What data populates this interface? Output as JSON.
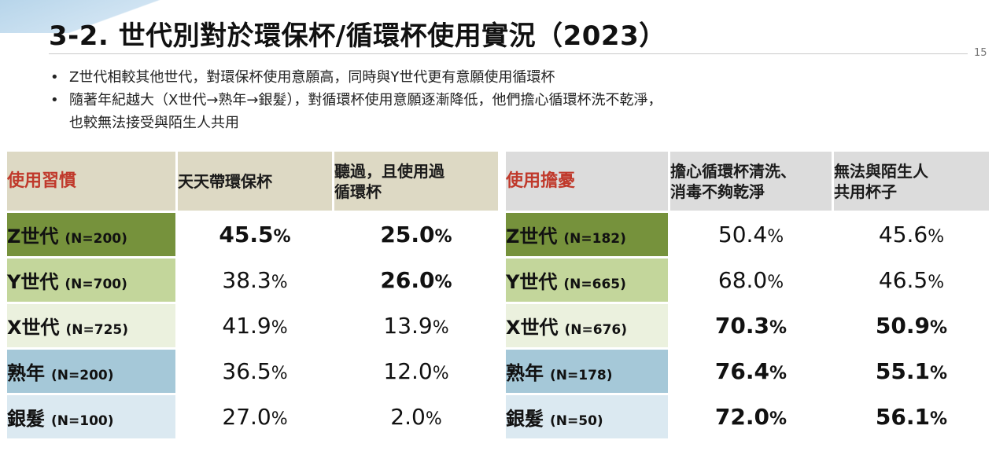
{
  "title": "3-2. 世代別對於環保杯/循環杯使用實況（2023）",
  "page_number": "15",
  "bullets": [
    [
      "Z世代相較其他世代，對環保杯使用意願高，同時與Y世代更有意願使用循環杯"
    ],
    [
      "隨著年紀越大（X世代→熟年→銀髮），對循環杯使用意願逐漸降低，他們擔心循環杯洗不乾淨，",
      "也較無法接受與陌生人共用"
    ]
  ],
  "bullet_symbol": "•",
  "habits_table": {
    "headers": [
      "使用習慣",
      "天天帶環保杯",
      "聽過，且使用過循環杯"
    ],
    "header_lines": [
      [
        "使用習慣"
      ],
      [
        "天天帶環保杯"
      ],
      [
        "聽過，且使用過",
        "循環杯"
      ]
    ],
    "rows": [
      {
        "gen": "Z世代",
        "n": "(N=200)",
        "v1": "45.5",
        "v2": "25.0"
      },
      {
        "gen": "Y世代",
        "n": "(N=700)",
        "v1": "38.3",
        "v2": "26.0"
      },
      {
        "gen": "X世代",
        "n": "(N=725)",
        "v1": "41.9",
        "v2": "13.9"
      },
      {
        "gen": "熟年",
        "n": "(N=200)",
        "v1": "36.5",
        "v2": "12.0"
      },
      {
        "gen": "銀髮",
        "n": "(N=100)",
        "v1": "27.0",
        "v2": "2.0"
      }
    ]
  },
  "concerns_table": {
    "headers": [
      "使用擔憂",
      "擔心循環杯清洗、消毒不夠乾淨",
      "無法與陌生人共用杯子"
    ],
    "header_lines": [
      [
        "使用擔憂"
      ],
      [
        "擔心循環杯清洗、",
        "消毒不夠乾淨"
      ],
      [
        "無法與陌生人",
        "共用杯子"
      ]
    ],
    "rows": [
      {
        "gen": "Z世代",
        "n": "(N=182)",
        "v1": "50.4",
        "v2": "45.6"
      },
      {
        "gen": "Y世代",
        "n": "(N=665)",
        "v1": "68.0",
        "v2": "46.5"
      },
      {
        "gen": "X世代",
        "n": "(N=676)",
        "v1": "70.3",
        "v2": "50.9"
      },
      {
        "gen": "熟年",
        "n": "(N=178)",
        "v1": "76.4",
        "v2": "55.1"
      },
      {
        "gen": "銀髮",
        "n": "(N=50)",
        "v1": "72.0",
        "v2": "56.1"
      }
    ]
  },
  "percent_sign": "%",
  "colors": {
    "header_tan": "#ddd9c4",
    "header_gray": "#dcdcdc",
    "label_red": "#c0392b",
    "gen_z": "#76923c",
    "gen_y": "#c3d69b",
    "gen_x": "#ebf1de",
    "gen_mature": "#a5c8d8",
    "gen_silver": "#dbe9f1"
  }
}
